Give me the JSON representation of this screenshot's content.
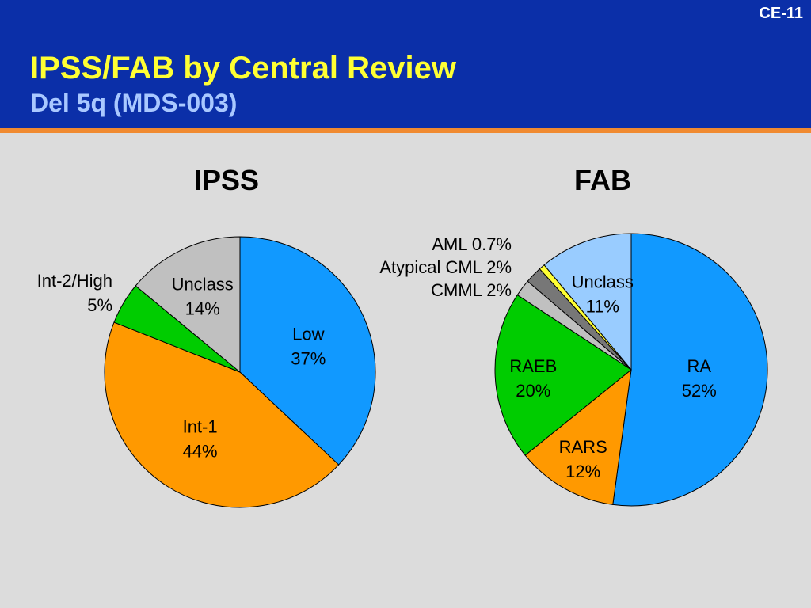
{
  "slide": {
    "id": "CE-11",
    "title": "IPSS/FAB by Central Review",
    "subtitle": "Del 5q (MDS-003)"
  },
  "chart_data": [
    {
      "type": "pie",
      "title": "IPSS",
      "slices": [
        {
          "label": "Low",
          "value": 37,
          "value_text": "37%",
          "color": "#1199ff"
        },
        {
          "label": "Int-1",
          "value": 44,
          "value_text": "44%",
          "color": "#ff9900"
        },
        {
          "label": "Int-2/High",
          "value": 5,
          "value_text": "5%",
          "color": "#00cc00"
        },
        {
          "label": "Unclass",
          "value": 14,
          "value_text": "14%",
          "color": "#c0c0c0"
        }
      ]
    },
    {
      "type": "pie",
      "title": "FAB",
      "slices": [
        {
          "label": "RA",
          "value": 52,
          "value_text": "52%",
          "color": "#1199ff"
        },
        {
          "label": "RARS",
          "value": 12,
          "value_text": "12%",
          "color": "#ff9900"
        },
        {
          "label": "RAEB",
          "value": 20,
          "value_text": "20%",
          "color": "#00cc00"
        },
        {
          "label": "CMML",
          "value": 2,
          "value_text": "2%",
          "color": "#c0c0c0"
        },
        {
          "label": "Atypical CML",
          "value": 2,
          "value_text": "2%",
          "color": "#777777"
        },
        {
          "label": "AML",
          "value": 0.7,
          "value_text": "0.7%",
          "color": "#ffff33"
        },
        {
          "label": "Unclass",
          "value": 11,
          "value_text": "11%",
          "color": "#99ccff"
        }
      ]
    }
  ]
}
